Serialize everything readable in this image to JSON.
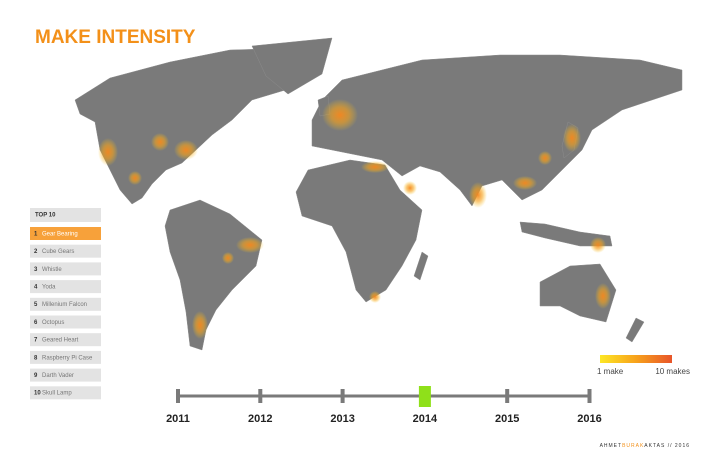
{
  "header": {
    "title": "MAKE INTENSITY"
  },
  "top10": {
    "title": "TOP 10",
    "items": [
      {
        "rank": 1,
        "name": "Gear Bearing",
        "active": true
      },
      {
        "rank": 2,
        "name": "Cube Gears",
        "active": false
      },
      {
        "rank": 3,
        "name": "Whistle",
        "active": false
      },
      {
        "rank": 4,
        "name": "Yoda",
        "active": false
      },
      {
        "rank": 5,
        "name": "Millenium Falcon",
        "active": false
      },
      {
        "rank": 6,
        "name": "Octopus",
        "active": false
      },
      {
        "rank": 7,
        "name": "Geared Heart",
        "active": false
      },
      {
        "rank": 8,
        "name": "Raspberry Pi Case",
        "active": false
      },
      {
        "rank": 9,
        "name": "Darth Vader",
        "active": false
      },
      {
        "rank": 10,
        "name": "Skull Lamp",
        "active": false
      }
    ]
  },
  "legend": {
    "min_label": "1 make",
    "max_label": "10 makes"
  },
  "timeline": {
    "years": [
      {
        "label": "2011",
        "selected": false
      },
      {
        "label": "2012",
        "selected": false
      },
      {
        "label": "2013",
        "selected": false
      },
      {
        "label": "2014",
        "selected": true
      },
      {
        "label": "2015",
        "selected": false
      },
      {
        "label": "2016",
        "selected": false
      }
    ]
  },
  "credit": {
    "first": "AHMET",
    "middle": "BURAK",
    "last": "AKTAS // 2016"
  }
}
